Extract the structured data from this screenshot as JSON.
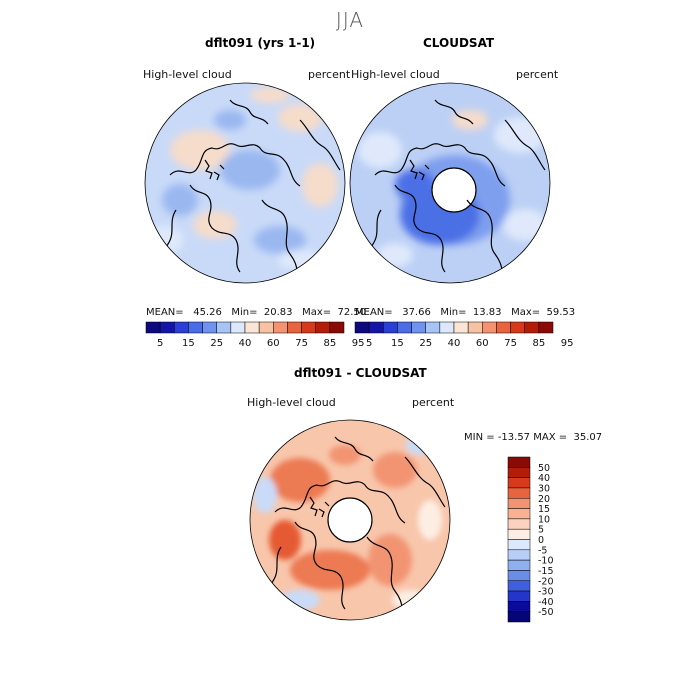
{
  "figure": {
    "season": "JJA",
    "panels": [
      {
        "title": "dflt091 (yrs 1-1)",
        "variable": "High-level cloud",
        "units": "percent",
        "stats": {
          "mean_label": "MEAN=",
          "mean": "45.26",
          "min_label": "Min=",
          "min": "20.83",
          "max_label": "Max=",
          "max": "72.50"
        }
      },
      {
        "title": "CLOUDSAT",
        "variable": "High-level cloud",
        "units": "percent",
        "stats": {
          "mean_label": "MEAN=",
          "mean": "37.66",
          "min_label": "Min=",
          "min": "13.83",
          "max_label": "Max=",
          "max": "59.53"
        }
      },
      {
        "title": "dflt091 - CLOUDSAT",
        "variable": "High-level cloud",
        "units": "percent",
        "stats": {
          "min_label": "MIN =",
          "min": "-13.57",
          "max_label": "MAX =",
          "max": "35.07"
        }
      }
    ],
    "abs_colorbar": {
      "tick_labels": [
        "5",
        "15",
        "25",
        "40",
        "60",
        "75",
        "85",
        "95"
      ],
      "colors": [
        "#0b0b7e",
        "#1414a8",
        "#2b3ed6",
        "#4a6ce8",
        "#6f93ef",
        "#a8c4f5",
        "#dce8fb",
        "#fbe6d6",
        "#f8c2a4",
        "#f29472",
        "#e8643f",
        "#d63a1a",
        "#b41c0a",
        "#8a0b06"
      ]
    },
    "diff_colorbar": {
      "tick_labels": [
        "50",
        "40",
        "30",
        "20",
        "15",
        "10",
        "5",
        "0",
        "-5",
        "-10",
        "-15",
        "-20",
        "-30",
        "-40",
        "-50"
      ],
      "colors": [
        "#8a0b06",
        "#b41c0a",
        "#d63a1a",
        "#e8643f",
        "#f29472",
        "#f8b293",
        "#fbd2bd",
        "#fdeee4",
        "#dce8fb",
        "#b7cff6",
        "#8fb0f0",
        "#6a8de8",
        "#3f5fe0",
        "#2336c9",
        "#0b0b9a",
        "#050578"
      ]
    }
  },
  "chart_data": [
    {
      "type": "heatmap",
      "title": "dflt091 (yrs 1-1)",
      "projection": "north polar stereographic",
      "variable": "High-level cloud",
      "units": "percent",
      "levels": [
        5,
        10,
        15,
        20,
        25,
        30,
        40,
        50,
        60,
        70,
        75,
        80,
        85,
        90,
        95
      ],
      "mean": 45.26,
      "min": 20.83,
      "max": 72.5
    },
    {
      "type": "heatmap",
      "title": "CLOUDSAT",
      "projection": "north polar stereographic",
      "variable": "High-level cloud",
      "units": "percent",
      "levels": [
        5,
        10,
        15,
        20,
        25,
        30,
        40,
        50,
        60,
        70,
        75,
        80,
        85,
        90,
        95
      ],
      "mean": 37.66,
      "min": 13.83,
      "max": 59.53
    },
    {
      "type": "heatmap",
      "title": "dflt091 - CLOUDSAT",
      "projection": "north polar stereographic",
      "variable": "High-level cloud",
      "units": "percent",
      "levels": [
        -50,
        -40,
        -30,
        -20,
        -15,
        -10,
        -5,
        0,
        5,
        10,
        15,
        20,
        30,
        40,
        50
      ],
      "min": -13.57,
      "max": 35.07
    }
  ]
}
